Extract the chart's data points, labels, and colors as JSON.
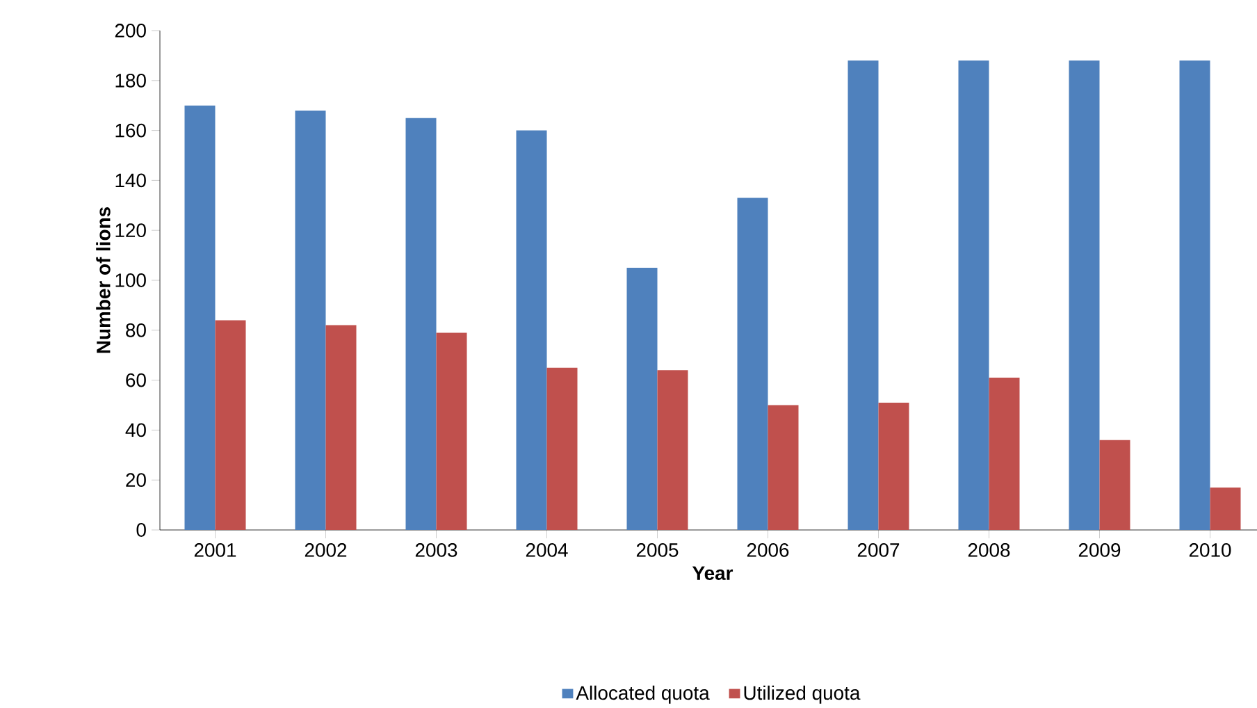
{
  "chart_data": {
    "type": "bar",
    "xlabel": "Year",
    "ylabel": "Number of lions",
    "categories": [
      "2001",
      "2002",
      "2003",
      "2004",
      "2005",
      "2006",
      "2007",
      "2008",
      "2009",
      "2010"
    ],
    "series": [
      {
        "name": "Allocated quota",
        "color": "#4f81bd",
        "values": [
          170,
          168,
          165,
          160,
          105,
          133,
          188,
          188,
          188,
          188
        ]
      },
      {
        "name": "Utilized quota",
        "color": "#c0504d",
        "values": [
          84,
          82,
          79,
          65,
          64,
          50,
          51,
          61,
          36,
          17
        ]
      }
    ],
    "ylim": [
      0,
      200
    ],
    "yticks": [
      0,
      20,
      40,
      60,
      80,
      100,
      120,
      140,
      160,
      180,
      200
    ],
    "grid": false,
    "legend": "bottom"
  }
}
